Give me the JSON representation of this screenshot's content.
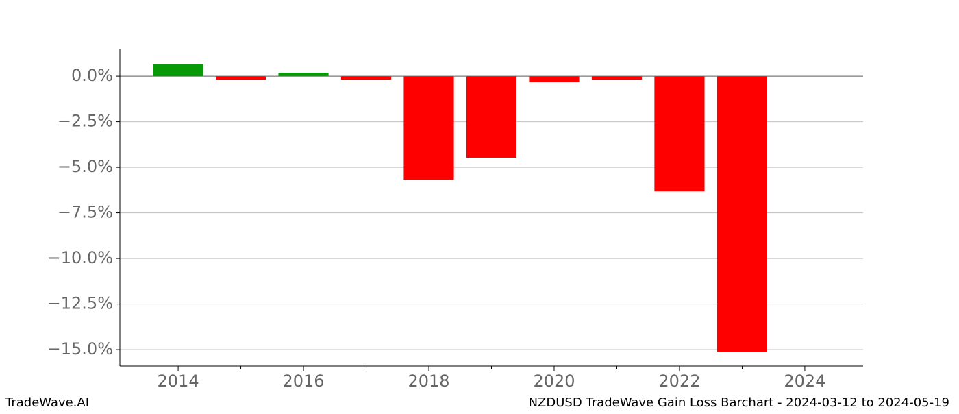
{
  "chart_data": {
    "type": "bar",
    "x": [
      2014,
      2015,
      2016,
      2017,
      2018,
      2019,
      2020,
      2021,
      2022,
      2023
    ],
    "values": [
      0.68,
      -0.19,
      0.19,
      -0.19,
      -5.68,
      -4.47,
      -0.34,
      -0.19,
      -6.32,
      -15.11
    ],
    "colors": [
      "#079a07",
      "#ff0000",
      "#079a07",
      "#ff0000",
      "#ff0000",
      "#ff0000",
      "#ff0000",
      "#ff0000",
      "#ff0000",
      "#ff0000"
    ],
    "xlim": [
      2013.07,
      2024.93
    ],
    "xticks": [
      2014,
      2016,
      2018,
      2020,
      2022,
      2024
    ],
    "xminorticks": [
      2015,
      2017,
      2019,
      2021,
      2023
    ],
    "ylim": [
      -15.9,
      1.47
    ],
    "yticks": [
      {
        "value": 0,
        "label": "0.0%"
      },
      {
        "value": -2.5,
        "label": "−2.5%"
      },
      {
        "value": -5,
        "label": "−5.0%"
      },
      {
        "value": -7.5,
        "label": "−7.5%"
      },
      {
        "value": -10,
        "label": "−10.0%"
      },
      {
        "value": -12.5,
        "label": "−12.5%"
      },
      {
        "value": -15,
        "label": "−15.0%"
      }
    ],
    "grid": true,
    "footer_left": "TradeWave.AI",
    "footer_right": "NZDUSD TradeWave Gain Loss Barchart - 2024-03-12 to 2024-05-19"
  }
}
